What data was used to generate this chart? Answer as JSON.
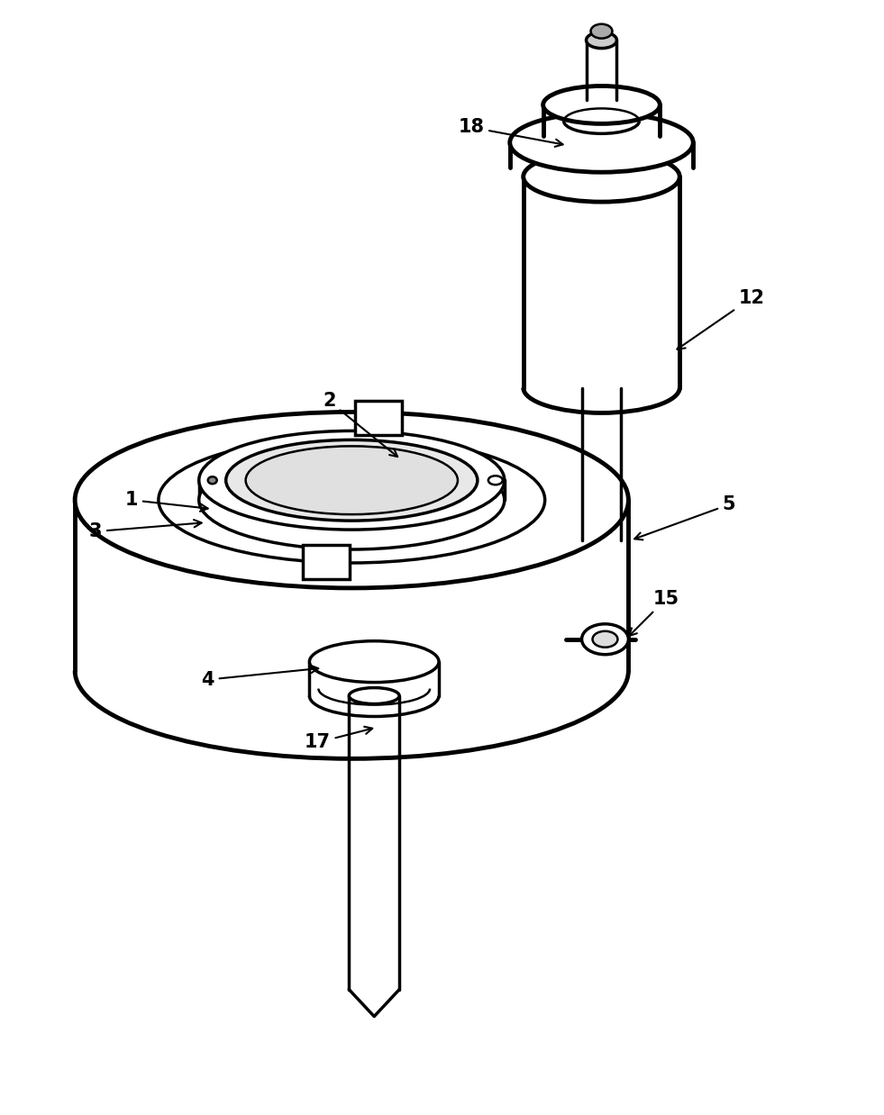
{
  "bg_color": "#ffffff",
  "line_color": "#000000",
  "lw_thin": 1.8,
  "lw_med": 2.5,
  "lw_thick": 3.5,
  "fig_width": 9.81,
  "fig_height": 12.38,
  "label_fontsize": 15,
  "label_fontweight": "bold"
}
